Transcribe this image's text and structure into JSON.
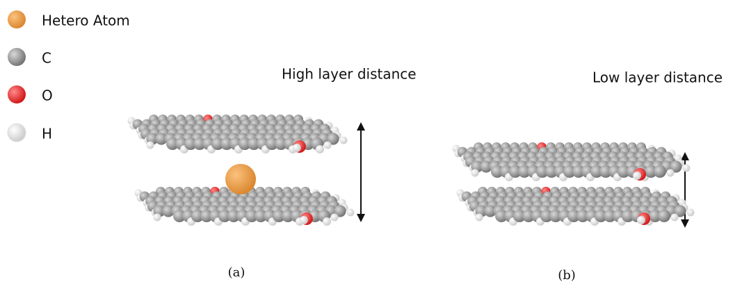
{
  "legend": {
    "items": [
      {
        "label": "Hetero Atom"
      },
      {
        "label": "C"
      },
      {
        "label": "O"
      },
      {
        "label": "H"
      }
    ]
  },
  "panels": [
    {
      "title": "High layer distance",
      "caption": "(a)"
    },
    {
      "title": "Low layer distance",
      "caption": "(b)"
    }
  ]
}
